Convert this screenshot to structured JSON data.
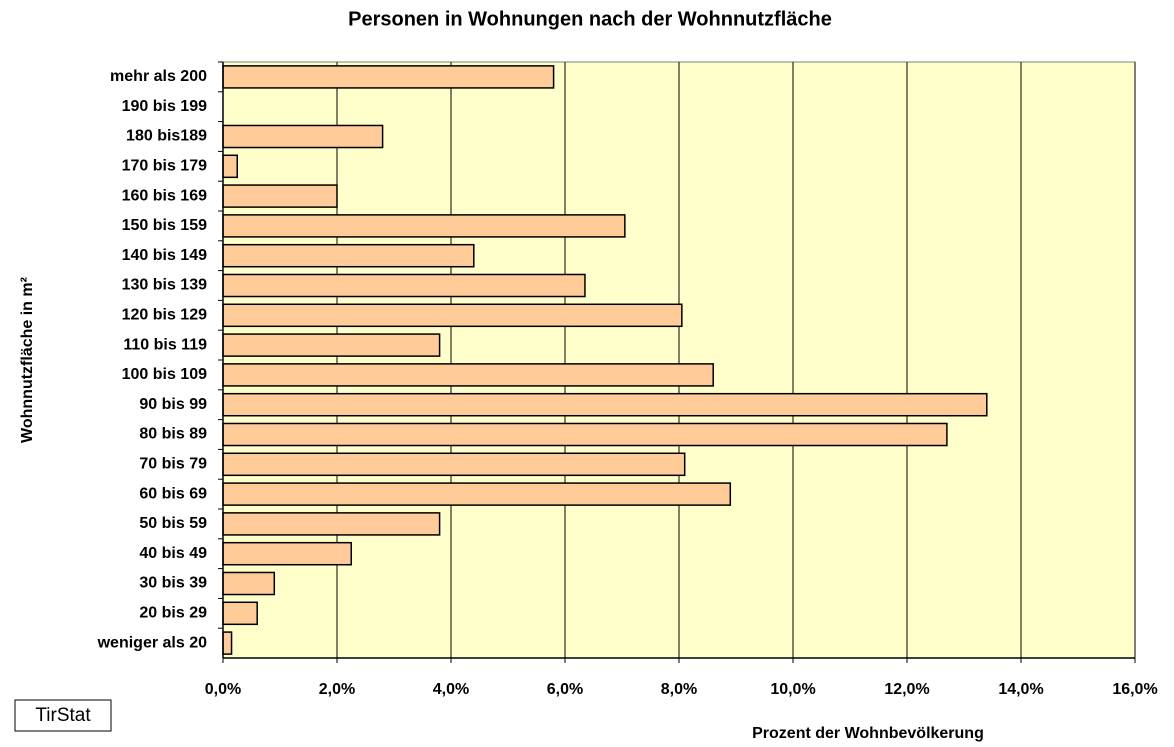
{
  "chart_data": {
    "type": "bar",
    "orientation": "horizontal",
    "title": "Personen in Wohnungen nach der Wohnnutzfläche",
    "x_label": "Prozent der Wohnbevölkerung",
    "y_label": "Wohnnutzfläche in m²",
    "source": "TirStat",
    "categories": [
      "mehr als 200",
      "190 bis 199",
      "180 bis189",
      "170 bis 179",
      "160 bis 169",
      "150 bis 159",
      "140 bis 149",
      "130 bis 139",
      "120 bis 129",
      "110 bis 119",
      "100 bis 109",
      "90 bis 99",
      "80 bis 89",
      "70 bis 79",
      "60 bis 69",
      "50 bis 59",
      "40 bis 49",
      "30 bis 39",
      "20 bis 29",
      "weniger als 20"
    ],
    "values": [
      5.8,
      0,
      2.8,
      0.25,
      2.0,
      7.05,
      4.4,
      6.35,
      8.05,
      3.8,
      8.6,
      13.4,
      12.7,
      8.1,
      8.9,
      3.8,
      2.25,
      0.9,
      0.6,
      0.15
    ],
    "color": "#ffcc99",
    "plot_background": "#ffffcc",
    "xlim": [
      0,
      16
    ],
    "xticks": [
      {
        "value": 0,
        "label": "0,0%"
      },
      {
        "value": 2,
        "label": "2,0%"
      },
      {
        "value": 4,
        "label": "4,0%"
      },
      {
        "value": 6,
        "label": "6,0%"
      },
      {
        "value": 8,
        "label": "8,0%"
      },
      {
        "value": 10,
        "label": "10,0%"
      },
      {
        "value": 12,
        "label": "12,0%"
      },
      {
        "value": 14,
        "label": "14,0%"
      },
      {
        "value": 16,
        "label": "16,0%"
      }
    ],
    "grid": true
  }
}
